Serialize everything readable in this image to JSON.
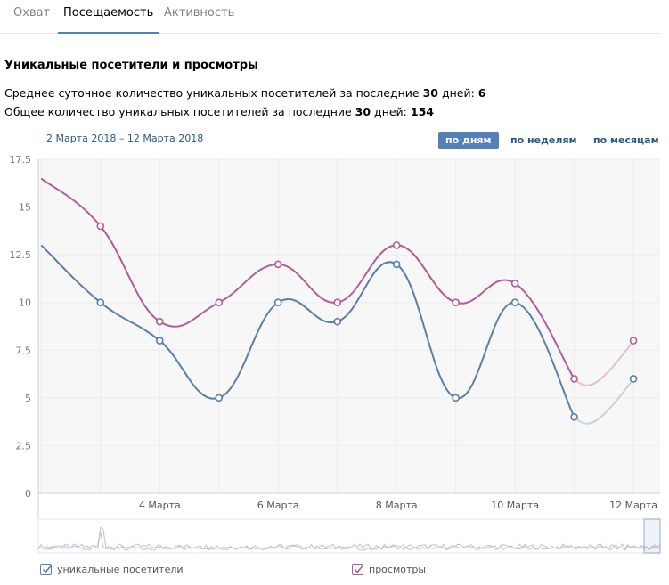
{
  "tabs": [
    {
      "label": "Охват",
      "active": false
    },
    {
      "label": "Посещаемость",
      "active": true
    },
    {
      "label": "Активность",
      "active": false
    }
  ],
  "section_title": "Уникальные посетители и просмотры",
  "stats": {
    "avg": {
      "prefix": "Среднее суточное количество уникальных посетителей за последние ",
      "days": "30",
      "middle": " дней: ",
      "value": "6"
    },
    "total": {
      "prefix": "Общее количество уникальных посетителей за последние ",
      "days": "30",
      "middle": " дней: ",
      "value": "154"
    }
  },
  "date_range": "2 Марта 2018 – 12 Марта 2018",
  "period_buttons": [
    {
      "label": "по дням",
      "active": true
    },
    {
      "label": "по неделям",
      "active": false
    },
    {
      "label": "по месяцам",
      "active": false
    }
  ],
  "legend": [
    {
      "label": "уникальные посетители",
      "checked": true
    },
    {
      "label": "просмотры",
      "checked": true
    }
  ],
  "colors": {
    "visitors": "#5b7fa6",
    "views": "#b25d98",
    "accent": "#5181b8",
    "grid": "#ececec",
    "plot_bg": "#f7f7f8"
  },
  "chart_data": {
    "type": "line",
    "x": [
      2,
      3,
      4,
      5,
      6,
      7,
      8,
      9,
      10,
      11,
      12
    ],
    "x_ticks": [
      {
        "value": 4,
        "label": "4 Марта"
      },
      {
        "value": 6,
        "label": "6 Марта"
      },
      {
        "value": 8,
        "label": "8 Марта"
      },
      {
        "value": 10,
        "label": "10 Марта"
      },
      {
        "value": 12,
        "label": "12 Марта"
      }
    ],
    "y_ticks": [
      "0",
      "2.5",
      "5",
      "7.5",
      "10",
      "12.5",
      "15",
      "17.5"
    ],
    "ylim": [
      0,
      17.5
    ],
    "grid": true,
    "series": [
      {
        "name": "уникальные посетители",
        "values": [
          13,
          10,
          8,
          5,
          10,
          9,
          12,
          5,
          10,
          4,
          6
        ]
      },
      {
        "name": "просмотры",
        "values": [
          16.5,
          14,
          9,
          10,
          12,
          10,
          13,
          10,
          11,
          6,
          8
        ]
      }
    ]
  }
}
